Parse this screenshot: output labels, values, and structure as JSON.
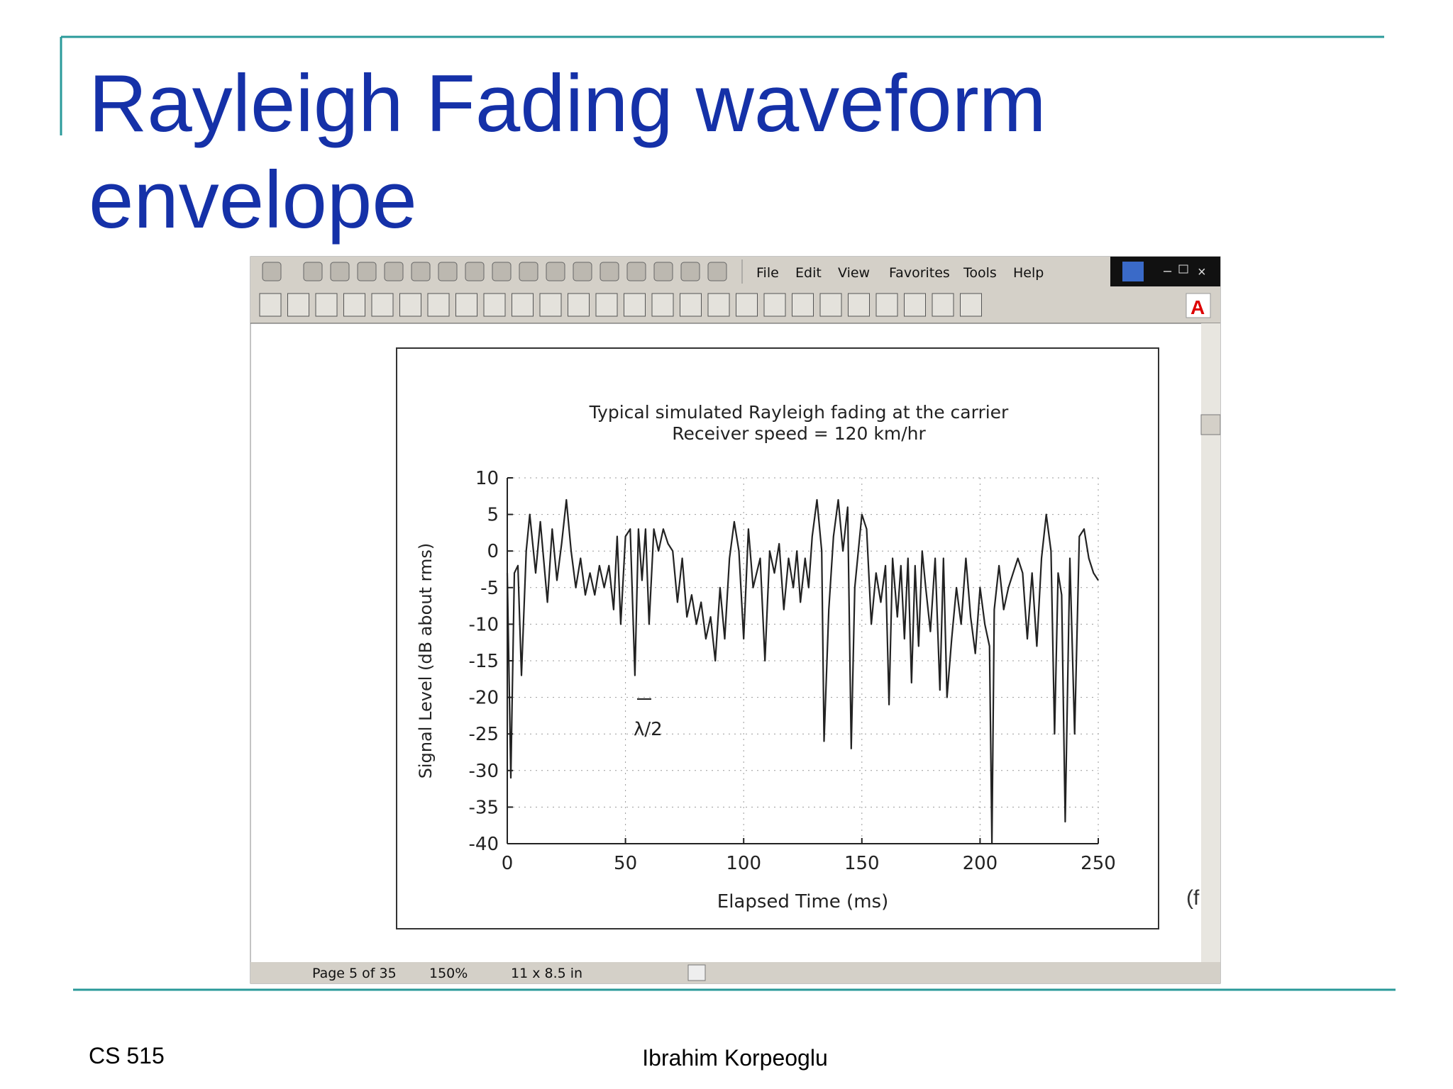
{
  "slide": {
    "title_lines": [
      "Rayleigh Fading waveform",
      "envelope"
    ],
    "footer_left": "CS 515",
    "footer_center": "Ibrahim Korpeoglu"
  },
  "browser": {
    "menu": [
      "File",
      "Edit",
      "View",
      "Favorites",
      "Tools",
      "Help"
    ],
    "status": [
      "Page 5 of 35",
      "150%",
      "11 x 8.5 in"
    ],
    "cropped_text": "(f"
  },
  "chart_data": {
    "type": "line",
    "title": "Typical simulated Rayleigh fading at the carrier",
    "subtitle": "Receiver speed = 120 km/hr",
    "x_label": "Elapsed Time (ms)",
    "y_label": "Signal Level (dB about rms)",
    "annotation": "λ/2",
    "x": [
      0,
      1.5,
      3,
      4.5,
      6,
      8,
      9.5,
      12,
      14,
      17,
      19,
      21,
      23,
      25,
      27,
      29,
      31,
      33,
      35,
      37,
      39,
      41,
      43,
      45,
      46.5,
      48,
      50,
      52,
      54,
      55.5,
      57,
      58.5,
      60,
      62,
      64,
      66,
      68,
      70,
      72,
      74,
      76,
      78,
      80,
      82,
      84,
      86,
      88,
      90,
      92,
      94,
      96,
      98,
      100,
      102,
      104,
      107,
      109,
      111,
      113,
      115,
      117,
      119,
      121,
      122.5,
      124,
      126,
      127.5,
      129,
      131,
      133,
      134,
      136,
      138,
      140,
      142,
      144,
      145.5,
      147,
      150,
      152,
      154,
      156,
      158,
      160,
      161.5,
      163,
      165,
      166.5,
      168,
      169.5,
      171,
      172.5,
      174,
      175.5,
      177,
      179,
      181,
      183,
      184.5,
      186,
      188,
      190,
      192,
      194,
      196,
      198,
      200,
      202,
      204,
      205,
      206,
      208,
      210,
      212,
      214,
      216,
      218,
      220,
      222,
      224,
      226,
      228,
      230,
      231.5,
      233,
      234.5,
      236,
      238,
      240,
      242,
      244,
      246,
      248,
      250
    ],
    "values": [
      -3,
      -31,
      -3,
      -2,
      -17,
      0,
      5,
      -3,
      4,
      -7,
      3,
      -4,
      1,
      7,
      0,
      -5,
      -1,
      -6,
      -3,
      -6,
      -2,
      -5,
      -2,
      -8,
      2,
      -10,
      2,
      3,
      -17,
      3,
      -4,
      3,
      -10,
      3,
      0,
      3,
      1,
      0,
      -7,
      -1,
      -9,
      -6,
      -10,
      -7,
      -12,
      -9,
      -15,
      -5,
      -12,
      -1,
      4,
      0,
      -12,
      3,
      -5,
      -1,
      -15,
      0,
      -3,
      1,
      -8,
      -1,
      -5,
      0,
      -7,
      -1,
      -5,
      2,
      7,
      0,
      -26,
      -8,
      2,
      7,
      0,
      6,
      -27,
      -5,
      5,
      3,
      -10,
      -3,
      -7,
      -2,
      -21,
      -1,
      -9,
      -2,
      -12,
      -1,
      -18,
      -2,
      -13,
      0,
      -5,
      -11,
      -1,
      -19,
      -1,
      -20,
      -12,
      -5,
      -10,
      -1,
      -9,
      -14,
      -5,
      -10,
      -13,
      -40,
      -8,
      -2,
      -8,
      -5,
      -3,
      -1,
      -3,
      -12,
      -3,
      -13,
      -1,
      5,
      0,
      -25,
      -3,
      -6,
      -37,
      -1,
      -25,
      2,
      3,
      -1,
      -3,
      -4
    ],
    "color": "#222222",
    "xlim": [
      0,
      250
    ],
    "ylim": [
      -40,
      10
    ],
    "xticks": [
      0,
      50,
      100,
      150,
      200,
      250
    ],
    "yticks": [
      -40,
      -35,
      -30,
      -25,
      -20,
      -15,
      -10,
      -5,
      0,
      5,
      10
    ],
    "grid": true
  }
}
